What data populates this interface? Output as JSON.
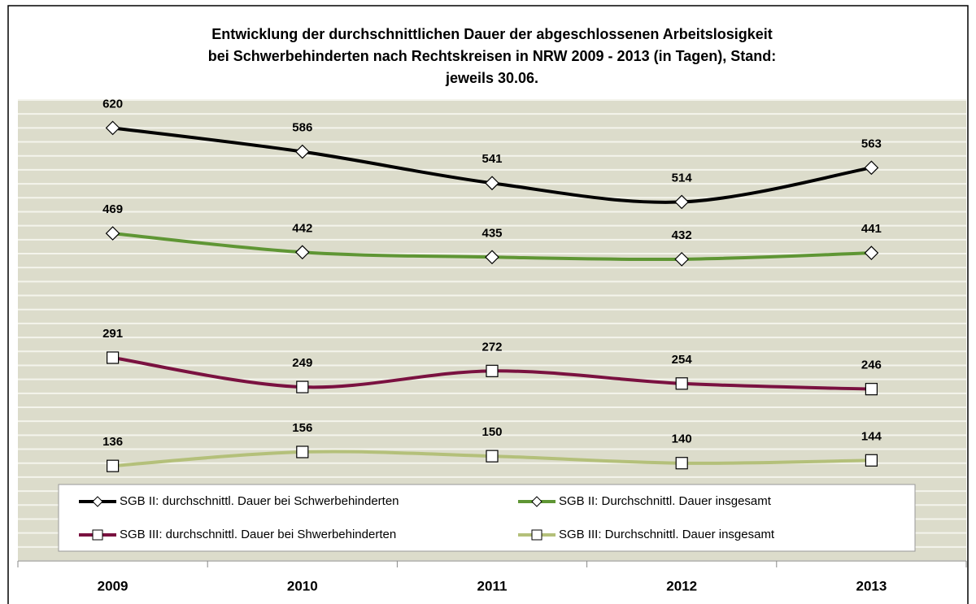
{
  "chart_data": {
    "type": "line",
    "title": [
      "Entwicklung  der durchschnittlichen Dauer der abgeschlossenen Arbeitslosigkeit",
      "bei Schwerbehinderten nach Rechtskreisen in NRW 2009 - 2013 (in Tagen), Stand:",
      "jeweils 30.06."
    ],
    "categories": [
      "2009",
      "2010",
      "2011",
      "2012",
      "2013"
    ],
    "series": [
      {
        "name": "SGB II: durchschnittl. Dauer bei Schwerbehinderten",
        "color": "#000000",
        "marker": "diamond",
        "values": [
          620,
          586,
          541,
          514,
          563
        ]
      },
      {
        "name": "SGB II: Durchschnittl. Dauer insgesamt",
        "color": "#5f9634",
        "marker": "diamond",
        "values": [
          469,
          442,
          435,
          432,
          441
        ]
      },
      {
        "name": "SGB III: durchschnittl. Dauer bei Shwerbehinderten",
        "color": "#7a1140",
        "marker": "square",
        "values": [
          291,
          249,
          272,
          254,
          246
        ]
      },
      {
        "name": "SGB III: Durchschnittl. Dauer insgesamt",
        "color": "#b4c07a",
        "marker": "square",
        "values": [
          136,
          156,
          150,
          140,
          144
        ]
      }
    ],
    "ylim": [
      0,
      660
    ],
    "yticks": [
      0,
      20,
      40,
      60,
      80,
      100,
      120,
      140,
      160,
      180,
      200,
      220,
      240,
      260,
      280,
      300,
      320,
      340,
      360,
      380,
      400,
      420,
      440,
      460,
      480,
      500,
      520,
      540,
      560,
      580,
      600,
      620,
      640,
      660
    ],
    "grid": true
  }
}
